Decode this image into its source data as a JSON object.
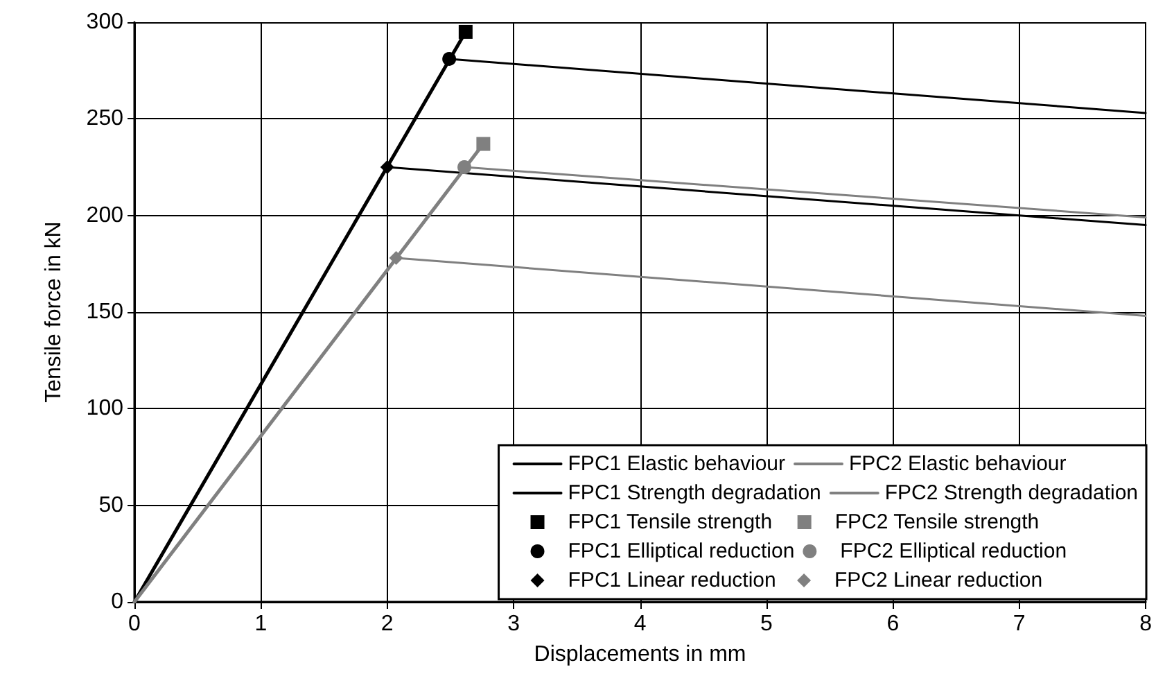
{
  "chart_data": {
    "type": "line",
    "xlabel": "Displacements in mm",
    "ylabel": "Tensile force in kN",
    "xlim": [
      0,
      8
    ],
    "xticks": [
      0,
      1,
      2,
      3,
      4,
      5,
      6,
      7,
      8
    ],
    "ylim": [
      0,
      300
    ],
    "yticks": [
      0,
      50,
      100,
      150,
      200,
      250,
      300
    ],
    "grid": true,
    "legend": "bottom right",
    "series": [
      {
        "name": "FPC1 Elastic behaviour",
        "color": "#000000",
        "marker": "none",
        "x": [
          0,
          2.62
        ],
        "values": [
          0,
          295
        ]
      },
      {
        "name": "FPC1 Strength degradation",
        "color": "#000000",
        "marker": "none",
        "x": [
          2.49,
          8,
          null,
          2.0,
          8
        ],
        "values": [
          281,
          253,
          null,
          225,
          195
        ]
      },
      {
        "name": "FPC1 Tensile strength",
        "type": "scatter",
        "color": "#000000",
        "marker": "square",
        "x": [
          2.62
        ],
        "values": [
          295
        ]
      },
      {
        "name": "FPC1 Elliptical reduction",
        "type": "scatter",
        "color": "#000000",
        "marker": "circle",
        "x": [
          2.49
        ],
        "values": [
          281
        ]
      },
      {
        "name": "FPC1 Linear reduction",
        "type": "scatter",
        "color": "#000000",
        "marker": "diamond",
        "x": [
          2.0
        ],
        "values": [
          225
        ]
      },
      {
        "name": "FPC2 Elastic behaviour",
        "color": "#808080",
        "marker": "none",
        "x": [
          0,
          2.76
        ],
        "values": [
          0,
          237
        ]
      },
      {
        "name": "FPC2 Strength degradation",
        "color": "#808080",
        "marker": "none",
        "x": [
          2.61,
          8,
          null,
          2.07,
          8
        ],
        "values": [
          225,
          199,
          null,
          178,
          148
        ]
      },
      {
        "name": "FPC2 Tensile strength",
        "type": "scatter",
        "color": "#808080",
        "marker": "square",
        "x": [
          2.76
        ],
        "values": [
          237
        ]
      },
      {
        "name": "FPC2 Elliptical reduction",
        "type": "scatter",
        "color": "#808080",
        "marker": "circle",
        "x": [
          2.61
        ],
        "values": [
          225
        ]
      },
      {
        "name": "FPC2 Linear reduction",
        "type": "scatter",
        "color": "#808080",
        "marker": "diamond",
        "x": [
          2.07
        ],
        "values": [
          178
        ]
      }
    ]
  }
}
